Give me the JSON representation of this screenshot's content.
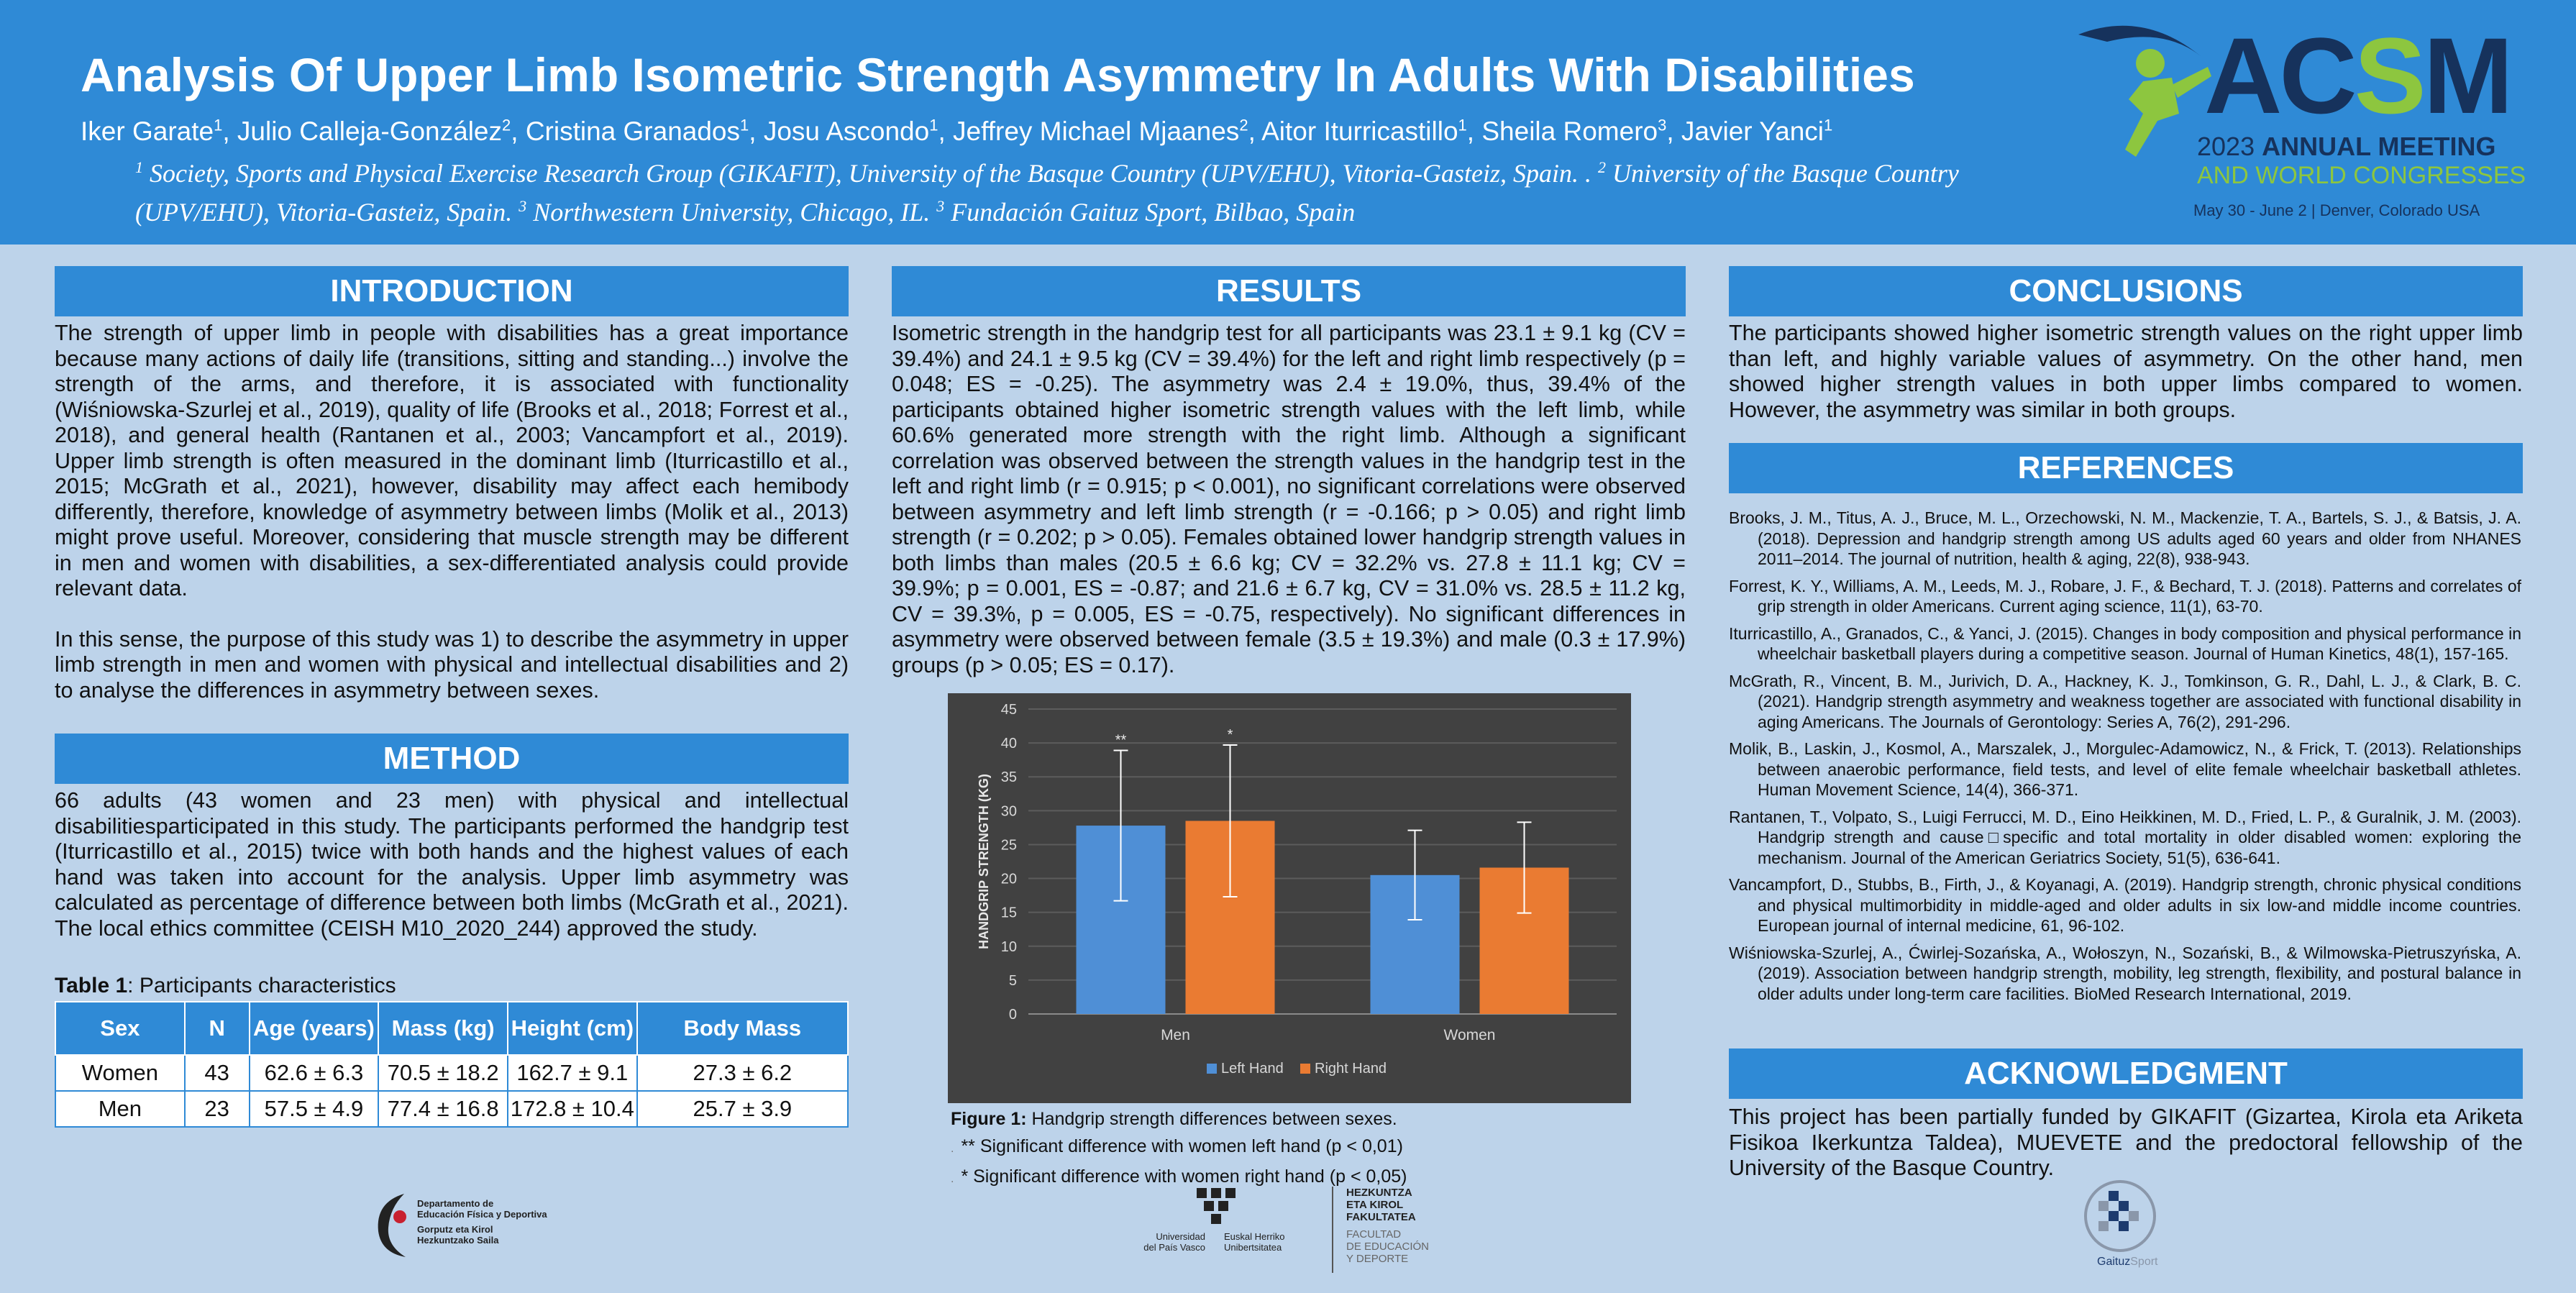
{
  "header": {
    "title": "Analysis Of Upper Limb Isometric Strength Asymmetry In Adults With Disabilities",
    "authors": [
      {
        "name": "Iker Garate",
        "sup": "1"
      },
      {
        "name": "Julio Calleja-González",
        "sup": "2"
      },
      {
        "name": "Cristina Granados",
        "sup": "1"
      },
      {
        "name": "Josu Ascondo",
        "sup": "1"
      },
      {
        "name": "Jeffrey Michael Mjaanes",
        "sup": "2"
      },
      {
        "name": "Aitor Iturricastillo",
        "sup": "1"
      },
      {
        "name": "Sheila Romero",
        "sup": "3"
      },
      {
        "name": "Javier Yanci",
        "sup": "1"
      }
    ],
    "affiliations": [
      {
        "sup": "1",
        "text": "Society, Sports and Physical Exercise Research Group (GIKAFIT), University of the Basque Country (UPV/EHU), Vitoria-Gasteiz, Spain. . "
      },
      {
        "sup": "2",
        "text": "University of the Basque Country (UPV/EHU), Vitoria-Gasteiz, Spain. "
      },
      {
        "sup": "3",
        "text": "Northwestern University, Chicago, IL. "
      },
      {
        "sup": "3",
        "text": "Fundación Gaituz Sport, Bilbao, Spain"
      }
    ]
  },
  "acsm_logo": {
    "word_a": "AC",
    "word_s": "S",
    "word_m": "M",
    "line1_year": "2023",
    "line1_rest": "ANNUAL MEETING",
    "line2": "AND WORLD CONGRESSES",
    "line3": "May 30 - June 2  |  Denver, Colorado USA",
    "colors": {
      "navy": "#16325c",
      "green": "#8dc63f"
    }
  },
  "introduction": {
    "heading": "INTRODUCTION",
    "paragraphs": [
      "The strength of upper limb in people with disabilities has a great importance because many actions of daily life (transitions, sitting and standing...) involve the strength of the arms, and therefore, it is associated with functionality (Wiśniowska-Szurlej et al., 2019), quality of life (Brooks et al., 2018; Forrest et al., 2018), and general health (Rantanen et al., 2003; Vancampfort et al., 2019). Upper limb strength is often measured in the dominant limb (Iturricastillo et al., 2015; McGrath et al., 2021), however, disability may affect each hemibody differently, therefore, knowledge of asymmetry between limbs (Molik et al., 2013) might prove useful. Moreover, considering that muscle strength may be different in men and women with disabilities, a sex-differentiated analysis could provide relevant data.",
      "In this sense, the purpose of this study was 1) to describe the asymmetry in upper limb strength in men and women with physical and intellectual disabilities and 2) to analyse the differences in asymmetry between sexes."
    ]
  },
  "method": {
    "heading": "METHOD",
    "text": "66 adults (43 women and 23 men) with physical and intellectual disabilitiesparticipated in this study. The participants performed the handgrip test (Iturricastillo et al., 2015) twice with both hands and the highest values of each hand was taken into account for the analysis. Upper limb asymmetry was calculated as percentage of difference between both limbs (McGrath et al., 2021). The local ethics committee (CEISH M10_2020_244) approved the study.",
    "table_caption_bold": "Table 1",
    "table_caption_rest": ": Participants characteristics",
    "table": {
      "headers": [
        "Sex",
        "N",
        "Age (years)",
        "Mass (kg)",
        "Height (cm)",
        "Body Mass"
      ],
      "rows": [
        [
          "Women",
          "43",
          "62.6 ± 6.3",
          "70.5 ± 18.2",
          "162.7 ± 9.1",
          "27.3 ± 6.2"
        ],
        [
          "Men",
          "23",
          "57.5 ± 4.9",
          "77.4 ± 16.8",
          "172.8 ± 10.4",
          "25.7 ± 3.9"
        ]
      ]
    }
  },
  "results": {
    "heading": "RESULTS",
    "text": "Isometric strength in the handgrip test for all participants was 23.1 ± 9.1 kg (CV = 39.4%) and 24.1 ± 9.5 kg (CV = 39.4%) for the left and right limb respectively (p = 0.048; ES = -0.25). The asymmetry was 2.4 ± 19.0%, thus, 39.4% of the participants obtained higher isometric strength values with the left limb, while 60.6% generated more strength with the right limb. Although a significant correlation was observed between the strength values in the handgrip test in the left and right limb (r = 0.915; p < 0.001), no significant correlations were observed between asymmetry and left limb strength (r = -0.166; p > 0.05) and right limb strength (r = 0.202; p > 0.05). Females obtained lower handgrip strength values in both limbs than males (20.5 ± 6.6 kg; CV = 32.2% vs. 27.8 ± 11.1 kg; CV = 39.9%; p = 0.001, ES = -0.87; and 21.6 ± 6.7 kg, CV = 31.0% vs. 28.5 ± 11.2 kg, CV = 39.3%, p = 0.005, ES = -0.75, respectively). No significant differences in asymmetry were observed between female (3.5 ± 19.3%) and male (0.3 ± 17.9%) groups (p > 0.05; ES = 0.17).",
    "figure_caption_bold": "Figure 1:",
    "figure_caption_rest": " Handgrip strength differences between sexes.",
    "figure_notes": [
      "** Significant difference with women left hand (p < 0,01)",
      "* Significant difference with women right hand (p < 0,05)"
    ]
  },
  "chart_data": {
    "type": "bar",
    "categories": [
      "Men",
      "Women"
    ],
    "series": [
      {
        "name": "Left Hand",
        "values": [
          27.8,
          20.5
        ],
        "errors": [
          11.1,
          6.6
        ],
        "color": "#4f8fd6",
        "markers": [
          "**",
          ""
        ]
      },
      {
        "name": "Right Hand",
        "values": [
          28.5,
          21.6
        ],
        "errors": [
          11.2,
          6.7
        ],
        "color": "#ea7b32",
        "markers": [
          "*",
          ""
        ]
      }
    ],
    "ylabel": "HANDGRIP STRENGTH (KG)",
    "ylim": [
      0,
      45
    ],
    "yticks": [
      0,
      5,
      10,
      15,
      20,
      25,
      30,
      35,
      40,
      45
    ],
    "grid": true,
    "legend": "bottom",
    "background": "#414141"
  },
  "conclusions": {
    "heading": "CONCLUSIONS",
    "text": "The participants showed higher isometric strength values on the right upper limb than left, and highly variable values of asymmetry. On the other hand, men showed higher strength values in both upper limbs compared to women. However, the asymmetry was similar in both groups."
  },
  "references": {
    "heading": "REFERENCES",
    "items": [
      "Brooks, J. M., Titus, A. J., Bruce, M. L., Orzechowski, N. M., Mackenzie, T. A., Bartels, S. J., & Batsis, J. A. (2018). Depression and handgrip strength among US adults aged 60 years and older from NHANES 2011–2014. The journal of nutrition, health & aging, 22(8), 938-943.",
      "Forrest, K. Y., Williams, A. M., Leeds, M. J., Robare, J. F., & Bechard, T. J. (2018). Patterns and correlates of grip strength in older Americans. Current aging science, 11(1), 63-70.",
      "Iturricastillo, A., Granados, C., & Yanci, J. (2015). Changes in body composition and physical performance in wheelchair basketball players during a competitive season. Journal of Human Kinetics, 48(1), 157-165.",
      "McGrath, R., Vincent, B. M., Jurivich, D. A., Hackney, K. J., Tomkinson, G. R., Dahl, L. J., & Clark, B. C. (2021). Handgrip strength asymmetry and weakness together are associated with functional disability in aging Americans. The Journals of Gerontology: Series A, 76(2), 291-296.",
      "Molik, B., Laskin, J., Kosmol, A., Marszalek, J., Morgulec-Adamowicz, N., & Frick, T. (2013). Relationships between anaerobic performance, field tests, and level of elite female wheelchair basketball athletes. Human Movement Science, 14(4), 366-371.",
      "Rantanen, T., Volpato, S., Luigi Ferrucci, M. D., Eino Heikkinen, M. D., Fried, L. P., & Guralnik, J. M. (2003). Handgrip strength and cause□specific and total mortality in older disabled women: exploring the mechanism. Journal of the American Geriatrics Society, 51(5), 636-641.",
      "Vancampfort, D., Stubbs, B., Firth, J., & Koyanagi, A. (2019). Handgrip strength, chronic physical conditions and physical multimorbidity in middle-aged and older adults in six low-and middle income countries. European journal of internal medicine, 61, 96-102.",
      "Wiśniowska-Szurlej, A., Ćwirlej-Sozańska, A., Wołoszyn, N., Sozański, B., & Wilmowska-Pietruszyńska, A. (2019). Association between handgrip strength, mobility, leg strength, flexibility, and postural balance in older adults under long-term care facilities. BioMed Research International, 2019."
    ]
  },
  "acknowledgment": {
    "heading": "ACKNOWLEDGMENT",
    "text": "This project has been partially funded by GIKAFIT (Gizartea, Kirola eta Ariketa Fisikoa Ikerkuntza Taldea), MUEVETE and the  predoctoral fellowship of the University of the Basque Country."
  },
  "footer_logos": {
    "dept_lines": [
      "Departamento de",
      "Educación Física y Deportiva",
      "Gorputz eta Kirol",
      "Hezkuntzako Saila"
    ],
    "upv_left": [
      "Universidad",
      "del País Vasco"
    ],
    "upv_right": [
      "Euskal Herriko",
      "Unibertsitatea"
    ],
    "faculty_eu": [
      "HEZKUNTZA",
      "ETA KIROL",
      "FAKULTATEA"
    ],
    "faculty_es": [
      "FACULTAD",
      "DE EDUCACIÓN",
      "Y DEPORTE"
    ],
    "gaituz_a": "Gaituz",
    "gaituz_b": "Sport"
  }
}
